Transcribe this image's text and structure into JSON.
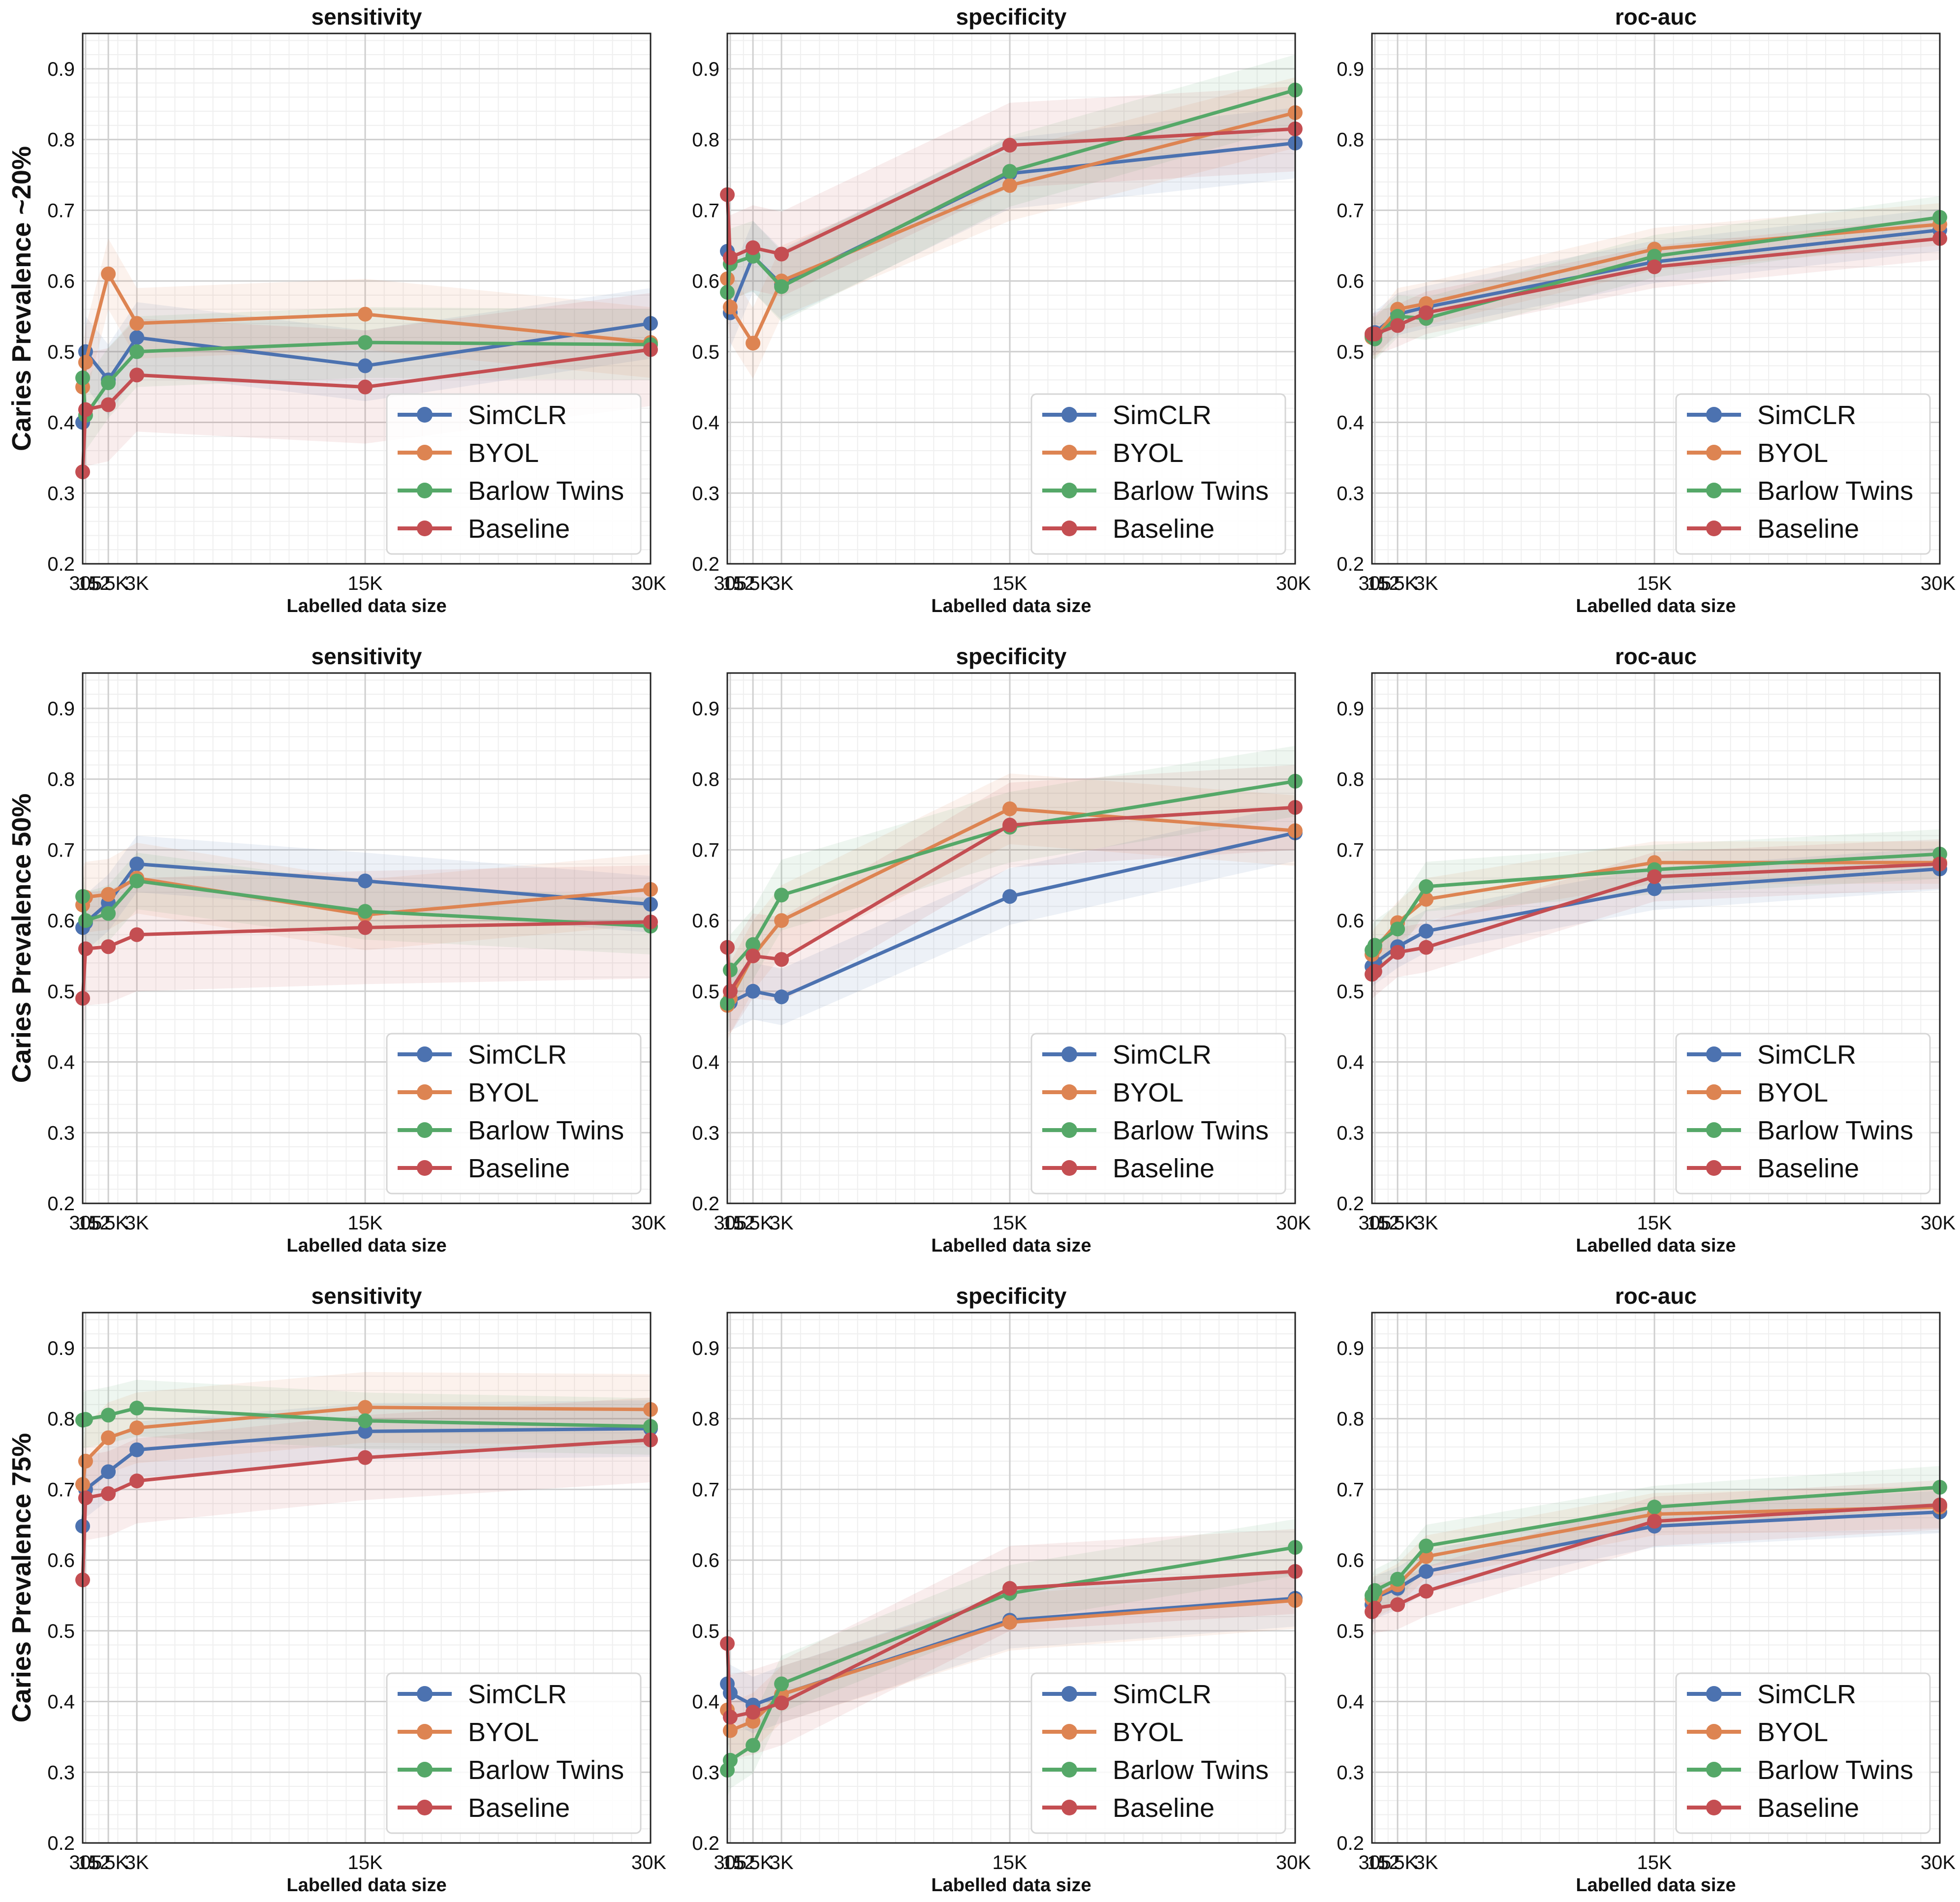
{
  "figure": {
    "xlabel": "Labelled data size",
    "row_labels": [
      "Caries Prevalence ~20%",
      "Caries Prevalence 50%",
      "Caries Prevalence 75%"
    ],
    "column_titles": [
      "sensitivity",
      "specificity",
      "roc-auc"
    ],
    "legend_location": "lower-right"
  },
  "colors": {
    "SimCLR": "#4C72B0",
    "BYOL": "#DD8452",
    "Barlow Twins": "#55A868",
    "Baseline": "#C44E52"
  },
  "chart_data": [
    {
      "type": "line",
      "title": "sensitivity",
      "row": 0,
      "col": 0,
      "ylabel": "Caries Prevalence ~20%",
      "xlabel": "Labelled data size",
      "categories": [
        "152",
        "305",
        "1.5K",
        "3K",
        "15K",
        "30K"
      ],
      "x": [
        152,
        305,
        1500,
        3000,
        15000,
        30000
      ],
      "ylim": [
        0.2,
        0.95
      ],
      "yticks": [
        0.2,
        0.3,
        0.4,
        0.5,
        0.6,
        0.7,
        0.8,
        0.9
      ],
      "grid": true,
      "legend": "lower-right",
      "series": [
        {
          "name": "SimCLR",
          "values": [
            0.4,
            0.5,
            0.46,
            0.52,
            0.48,
            0.54
          ],
          "band": 0.05
        },
        {
          "name": "BYOL",
          "values": [
            0.45,
            0.485,
            0.61,
            0.54,
            0.553,
            0.513
          ],
          "band": 0.05
        },
        {
          "name": "Barlow Twins",
          "values": [
            0.463,
            0.41,
            0.456,
            0.5,
            0.513,
            0.51
          ],
          "band": 0.05
        },
        {
          "name": "Baseline",
          "values": [
            0.33,
            0.418,
            0.425,
            0.467,
            0.45,
            0.503
          ],
          "band": 0.08
        }
      ]
    },
    {
      "type": "line",
      "title": "specificity",
      "row": 0,
      "col": 1,
      "xlabel": "Labelled data size",
      "categories": [
        "152",
        "305",
        "1.5K",
        "3K",
        "15K",
        "30K"
      ],
      "x": [
        152,
        305,
        1500,
        3000,
        15000,
        30000
      ],
      "ylim": [
        0.2,
        0.95
      ],
      "yticks": [
        0.2,
        0.3,
        0.4,
        0.5,
        0.6,
        0.7,
        0.8,
        0.9
      ],
      "grid": true,
      "legend": "lower-right",
      "series": [
        {
          "name": "SimCLR",
          "values": [
            0.642,
            0.555,
            0.635,
            0.595,
            0.752,
            0.795
          ],
          "band": 0.05
        },
        {
          "name": "BYOL",
          "values": [
            0.603,
            0.563,
            0.512,
            0.6,
            0.735,
            0.838
          ],
          "band": 0.05
        },
        {
          "name": "Barlow Twins",
          "values": [
            0.584,
            0.624,
            0.635,
            0.592,
            0.755,
            0.87
          ],
          "band": 0.05
        },
        {
          "name": "Baseline",
          "values": [
            0.722,
            0.633,
            0.647,
            0.638,
            0.792,
            0.815
          ],
          "band": 0.06
        }
      ]
    },
    {
      "type": "line",
      "title": "roc-auc",
      "row": 0,
      "col": 2,
      "xlabel": "Labelled data size",
      "categories": [
        "152",
        "305",
        "1.5K",
        "3K",
        "15K",
        "30K"
      ],
      "x": [
        152,
        305,
        1500,
        3000,
        15000,
        30000
      ],
      "ylim": [
        0.2,
        0.95
      ],
      "yticks": [
        0.2,
        0.3,
        0.4,
        0.5,
        0.6,
        0.7,
        0.8,
        0.9
      ],
      "grid": true,
      "legend": "lower-right",
      "series": [
        {
          "name": "SimCLR",
          "values": [
            0.522,
            0.527,
            0.553,
            0.563,
            0.627,
            0.672
          ],
          "band": 0.03
        },
        {
          "name": "BYOL",
          "values": [
            0.52,
            0.52,
            0.56,
            0.568,
            0.645,
            0.68
          ],
          "band": 0.03
        },
        {
          "name": "Barlow Twins",
          "values": [
            0.522,
            0.518,
            0.55,
            0.547,
            0.635,
            0.69
          ],
          "band": 0.03
        },
        {
          "name": "Baseline",
          "values": [
            0.525,
            0.525,
            0.537,
            0.555,
            0.62,
            0.66
          ],
          "band": 0.03
        }
      ]
    },
    {
      "type": "line",
      "title": "sensitivity",
      "row": 1,
      "col": 0,
      "ylabel": "Caries Prevalence 50%",
      "xlabel": "Labelled data size",
      "categories": [
        "152",
        "305",
        "1.5K",
        "3K",
        "15K",
        "30K"
      ],
      "x": [
        152,
        305,
        1500,
        3000,
        15000,
        30000
      ],
      "ylim": [
        0.2,
        0.95
      ],
      "yticks": [
        0.2,
        0.3,
        0.4,
        0.5,
        0.6,
        0.7,
        0.8,
        0.9
      ],
      "grid": true,
      "legend": "lower-right",
      "series": [
        {
          "name": "SimCLR",
          "values": [
            0.59,
            0.597,
            0.625,
            0.68,
            0.656,
            0.623
          ],
          "band": 0.04
        },
        {
          "name": "BYOL",
          "values": [
            0.622,
            0.633,
            0.637,
            0.66,
            0.608,
            0.644
          ],
          "band": 0.05
        },
        {
          "name": "Barlow Twins",
          "values": [
            0.634,
            0.6,
            0.61,
            0.656,
            0.613,
            0.592
          ],
          "band": 0.04
        },
        {
          "name": "Baseline",
          "values": [
            0.49,
            0.56,
            0.563,
            0.58,
            0.59,
            0.598
          ],
          "band": 0.08
        }
      ]
    },
    {
      "type": "line",
      "title": "specificity",
      "row": 1,
      "col": 1,
      "xlabel": "Labelled data size",
      "categories": [
        "152",
        "305",
        "1.5K",
        "3K",
        "15K",
        "30K"
      ],
      "x": [
        152,
        305,
        1500,
        3000,
        15000,
        30000
      ],
      "ylim": [
        0.2,
        0.95
      ],
      "yticks": [
        0.2,
        0.3,
        0.4,
        0.5,
        0.6,
        0.7,
        0.8,
        0.9
      ],
      "grid": true,
      "legend": "lower-right",
      "series": [
        {
          "name": "SimCLR",
          "values": [
            0.482,
            0.484,
            0.5,
            0.492,
            0.634,
            0.724
          ],
          "band": 0.04
        },
        {
          "name": "BYOL",
          "values": [
            0.48,
            0.49,
            0.55,
            0.6,
            0.758,
            0.727
          ],
          "band": 0.05
        },
        {
          "name": "Barlow Twins",
          "values": [
            0.483,
            0.53,
            0.566,
            0.636,
            0.732,
            0.797
          ],
          "band": 0.05
        },
        {
          "name": "Baseline",
          "values": [
            0.562,
            0.5,
            0.55,
            0.545,
            0.735,
            0.76
          ],
          "band": 0.06
        }
      ]
    },
    {
      "type": "line",
      "title": "roc-auc",
      "row": 1,
      "col": 2,
      "xlabel": "Labelled data size",
      "categories": [
        "152",
        "305",
        "1.5K",
        "3K",
        "15K",
        "30K"
      ],
      "x": [
        152,
        305,
        1500,
        3000,
        15000,
        30000
      ],
      "ylim": [
        0.2,
        0.95
      ],
      "yticks": [
        0.2,
        0.3,
        0.4,
        0.5,
        0.6,
        0.7,
        0.8,
        0.9
      ],
      "grid": true,
      "legend": "lower-right",
      "series": [
        {
          "name": "SimCLR",
          "values": [
            0.535,
            0.54,
            0.563,
            0.585,
            0.645,
            0.673
          ],
          "band": 0.03
        },
        {
          "name": "BYOL",
          "values": [
            0.552,
            0.56,
            0.597,
            0.63,
            0.682,
            0.682
          ],
          "band": 0.03
        },
        {
          "name": "Barlow Twins",
          "values": [
            0.558,
            0.565,
            0.588,
            0.648,
            0.672,
            0.694
          ],
          "band": 0.035
        },
        {
          "name": "Baseline",
          "values": [
            0.524,
            0.528,
            0.555,
            0.562,
            0.662,
            0.68
          ],
          "band": 0.035
        }
      ]
    },
    {
      "type": "line",
      "title": "sensitivity",
      "row": 2,
      "col": 0,
      "ylabel": "Caries Prevalence 75%",
      "xlabel": "Labelled data size",
      "categories": [
        "152",
        "305",
        "1.5K",
        "3K",
        "15K",
        "30K"
      ],
      "x": [
        152,
        305,
        1500,
        3000,
        15000,
        30000
      ],
      "ylim": [
        0.2,
        0.95
      ],
      "yticks": [
        0.2,
        0.3,
        0.4,
        0.5,
        0.6,
        0.7,
        0.8,
        0.9
      ],
      "grid": true,
      "legend": "lower-right",
      "series": [
        {
          "name": "SimCLR",
          "values": [
            0.648,
            0.7,
            0.725,
            0.756,
            0.782,
            0.786
          ],
          "band": 0.04
        },
        {
          "name": "BYOL",
          "values": [
            0.707,
            0.74,
            0.773,
            0.787,
            0.816,
            0.813
          ],
          "band": 0.05
        },
        {
          "name": "Barlow Twins",
          "values": [
            0.798,
            0.799,
            0.805,
            0.815,
            0.797,
            0.789
          ],
          "band": 0.04
        },
        {
          "name": "Baseline",
          "values": [
            0.572,
            0.688,
            0.694,
            0.712,
            0.745,
            0.77
          ],
          "band": 0.06
        }
      ]
    },
    {
      "type": "line",
      "title": "specificity",
      "row": 2,
      "col": 1,
      "xlabel": "Labelled data size",
      "categories": [
        "152",
        "305",
        "1.5K",
        "3K",
        "15K",
        "30K"
      ],
      "x": [
        152,
        305,
        1500,
        3000,
        15000,
        30000
      ],
      "ylim": [
        0.2,
        0.95
      ],
      "yticks": [
        0.2,
        0.3,
        0.4,
        0.5,
        0.6,
        0.7,
        0.8,
        0.9
      ],
      "grid": true,
      "legend": "lower-right",
      "series": [
        {
          "name": "SimCLR",
          "values": [
            0.425,
            0.412,
            0.395,
            0.41,
            0.515,
            0.546
          ],
          "band": 0.04
        },
        {
          "name": "BYOL",
          "values": [
            0.388,
            0.359,
            0.372,
            0.41,
            0.512,
            0.543
          ],
          "band": 0.04
        },
        {
          "name": "Barlow Twins",
          "values": [
            0.303,
            0.317,
            0.338,
            0.425,
            0.553,
            0.618
          ],
          "band": 0.04
        },
        {
          "name": "Baseline",
          "values": [
            0.482,
            0.378,
            0.385,
            0.398,
            0.56,
            0.584
          ],
          "band": 0.06
        }
      ]
    },
    {
      "type": "line",
      "title": "roc-auc",
      "row": 2,
      "col": 2,
      "xlabel": "Labelled data size",
      "categories": [
        "152",
        "305",
        "1.5K",
        "3K",
        "15K",
        "30K"
      ],
      "x": [
        152,
        305,
        1500,
        3000,
        15000,
        30000
      ],
      "ylim": [
        0.2,
        0.95
      ],
      "yticks": [
        0.2,
        0.3,
        0.4,
        0.5,
        0.6,
        0.7,
        0.8,
        0.9
      ],
      "grid": true,
      "legend": "lower-right",
      "series": [
        {
          "name": "SimCLR",
          "values": [
            0.537,
            0.547,
            0.56,
            0.584,
            0.648,
            0.668
          ],
          "band": 0.03
        },
        {
          "name": "BYOL",
          "values": [
            0.545,
            0.548,
            0.565,
            0.605,
            0.665,
            0.675
          ],
          "band": 0.03
        },
        {
          "name": "Barlow Twins",
          "values": [
            0.55,
            0.557,
            0.573,
            0.62,
            0.675,
            0.703
          ],
          "band": 0.03
        },
        {
          "name": "Baseline",
          "values": [
            0.527,
            0.532,
            0.537,
            0.556,
            0.655,
            0.678
          ],
          "band": 0.035
        }
      ]
    }
  ]
}
